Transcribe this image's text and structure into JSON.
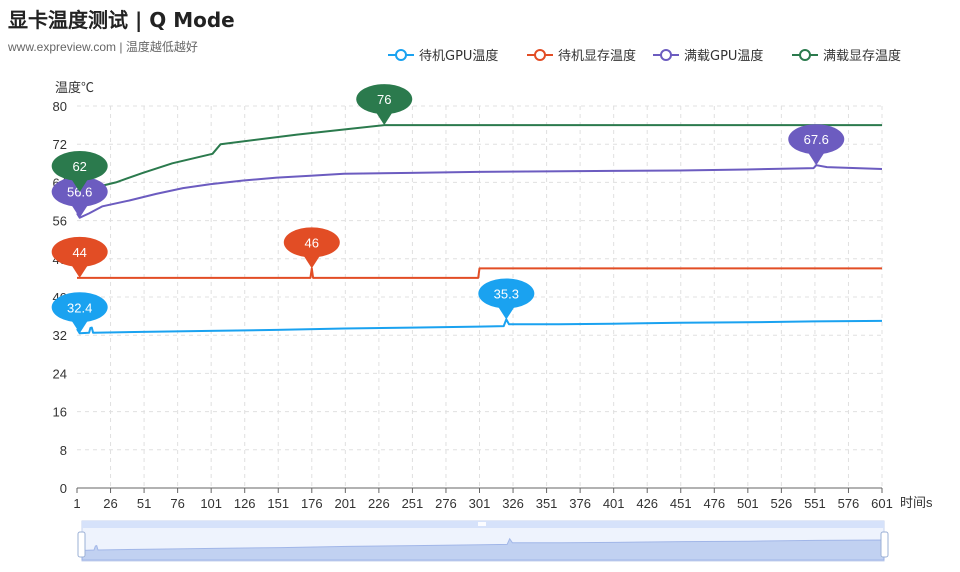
{
  "header": {
    "title": "显卡温度测试 | Q Mode",
    "subtitle": "www.expreview.com | 温度越低越好"
  },
  "chart_data": {
    "type": "line",
    "title": "显卡温度测试 | Q Mode",
    "subtitle": "www.expreview.com | 温度越低越好",
    "xlabel": "时间s",
    "ylabel": "温度℃",
    "xlim": [
      1,
      601
    ],
    "ylim": [
      0,
      80
    ],
    "yticks": [
      0,
      8,
      16,
      24,
      32,
      40,
      48,
      56,
      64,
      72,
      80
    ],
    "xticks": [
      1,
      26,
      51,
      76,
      101,
      126,
      151,
      176,
      201,
      226,
      251,
      276,
      301,
      326,
      351,
      376,
      401,
      426,
      451,
      476,
      501,
      526,
      551,
      576,
      601
    ],
    "grid": true,
    "legend_position": "top-right",
    "series": [
      {
        "name": "待机GPU温度",
        "color": "#1aa2f0",
        "points": [
          [
            1,
            33.3
          ],
          [
            3,
            32.4
          ],
          [
            10,
            32.5
          ],
          [
            11,
            33.5
          ],
          [
            12,
            33.6
          ],
          [
            13,
            32.5
          ],
          [
            50,
            32.7
          ],
          [
            100,
            32.9
          ],
          [
            150,
            33.1
          ],
          [
            200,
            33.4
          ],
          [
            250,
            33.6
          ],
          [
            300,
            33.8
          ],
          [
            319,
            33.9
          ],
          [
            321,
            35.3
          ],
          [
            323,
            34.3
          ],
          [
            360,
            34.3
          ],
          [
            400,
            34.4
          ],
          [
            450,
            34.6
          ],
          [
            500,
            34.7
          ],
          [
            550,
            34.9
          ],
          [
            601,
            35.0
          ]
        ],
        "markers": [
          {
            "label": "32.4",
            "x": 3,
            "y": 32.4
          },
          {
            "label": "35.3",
            "x": 321,
            "y": 35.3
          }
        ]
      },
      {
        "name": "待机显存温度",
        "color": "#e24d25",
        "points": [
          [
            1,
            44
          ],
          [
            175,
            44
          ],
          [
            176,
            46
          ],
          [
            177,
            44
          ],
          [
            300,
            44
          ],
          [
            301,
            46
          ],
          [
            601,
            46
          ]
        ],
        "markers": [
          {
            "label": "44",
            "x": 3,
            "y": 44
          },
          {
            "label": "46",
            "x": 176,
            "y": 46
          }
        ]
      },
      {
        "name": "满载GPU温度",
        "color": "#6c5cc0",
        "points": [
          [
            1,
            57.5
          ],
          [
            3,
            56.6
          ],
          [
            10,
            57.5
          ],
          [
            20,
            59
          ],
          [
            40,
            60.2
          ],
          [
            60,
            61.6
          ],
          [
            80,
            62.8
          ],
          [
            100,
            63.6
          ],
          [
            125,
            64.4
          ],
          [
            150,
            65.0
          ],
          [
            175,
            65.4
          ],
          [
            200,
            65.8
          ],
          [
            250,
            66.0
          ],
          [
            300,
            66.2
          ],
          [
            350,
            66.3
          ],
          [
            400,
            66.4
          ],
          [
            450,
            66.5
          ],
          [
            500,
            66.7
          ],
          [
            550,
            67.0
          ],
          [
            552,
            67.6
          ],
          [
            560,
            67.2
          ],
          [
            601,
            66.8
          ]
        ],
        "markers": [
          {
            "label": "56.6",
            "x": 3,
            "y": 56.6
          },
          {
            "label": "67.6",
            "x": 552,
            "y": 67.6
          }
        ]
      },
      {
        "name": "满载显存温度",
        "color": "#2b7a4d",
        "points": [
          [
            1,
            62
          ],
          [
            30,
            64
          ],
          [
            50,
            66
          ],
          [
            72,
            68
          ],
          [
            102,
            70
          ],
          [
            108,
            72
          ],
          [
            165,
            74
          ],
          [
            230,
            76
          ],
          [
            601,
            76
          ]
        ],
        "markers": [
          {
            "label": "62",
            "x": 3,
            "y": 62
          },
          {
            "label": "76",
            "x": 230,
            "y": 76
          }
        ]
      }
    ]
  }
}
